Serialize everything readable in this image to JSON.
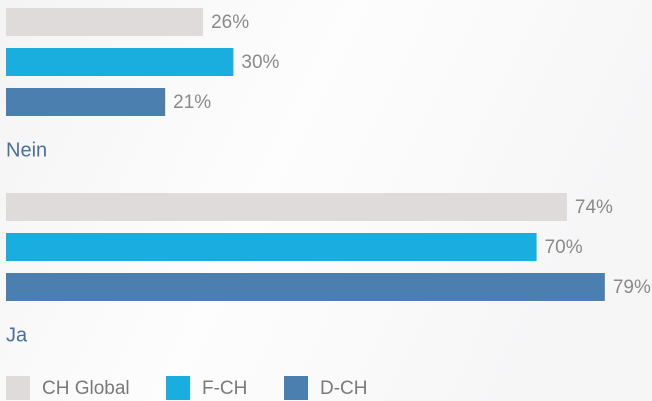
{
  "chart_data": {
    "type": "bar",
    "orientation": "horizontal",
    "categories": [
      "Nein",
      "Ja"
    ],
    "xlim": [
      0,
      100
    ],
    "series": [
      {
        "name": "CH Global",
        "color": "#e0dbdb",
        "values": [
          26,
          74
        ],
        "value_labels": [
          "26%",
          "74%"
        ]
      },
      {
        "name": "F-CH",
        "color": "#1aaedf",
        "values": [
          30,
          70
        ],
        "value_labels": [
          "30%",
          "70%"
        ]
      },
      {
        "name": "D-CH",
        "color": "#4a7fb0",
        "values": [
          21,
          79
        ],
        "value_labels": [
          "21%",
          "79%"
        ]
      }
    ]
  }
}
